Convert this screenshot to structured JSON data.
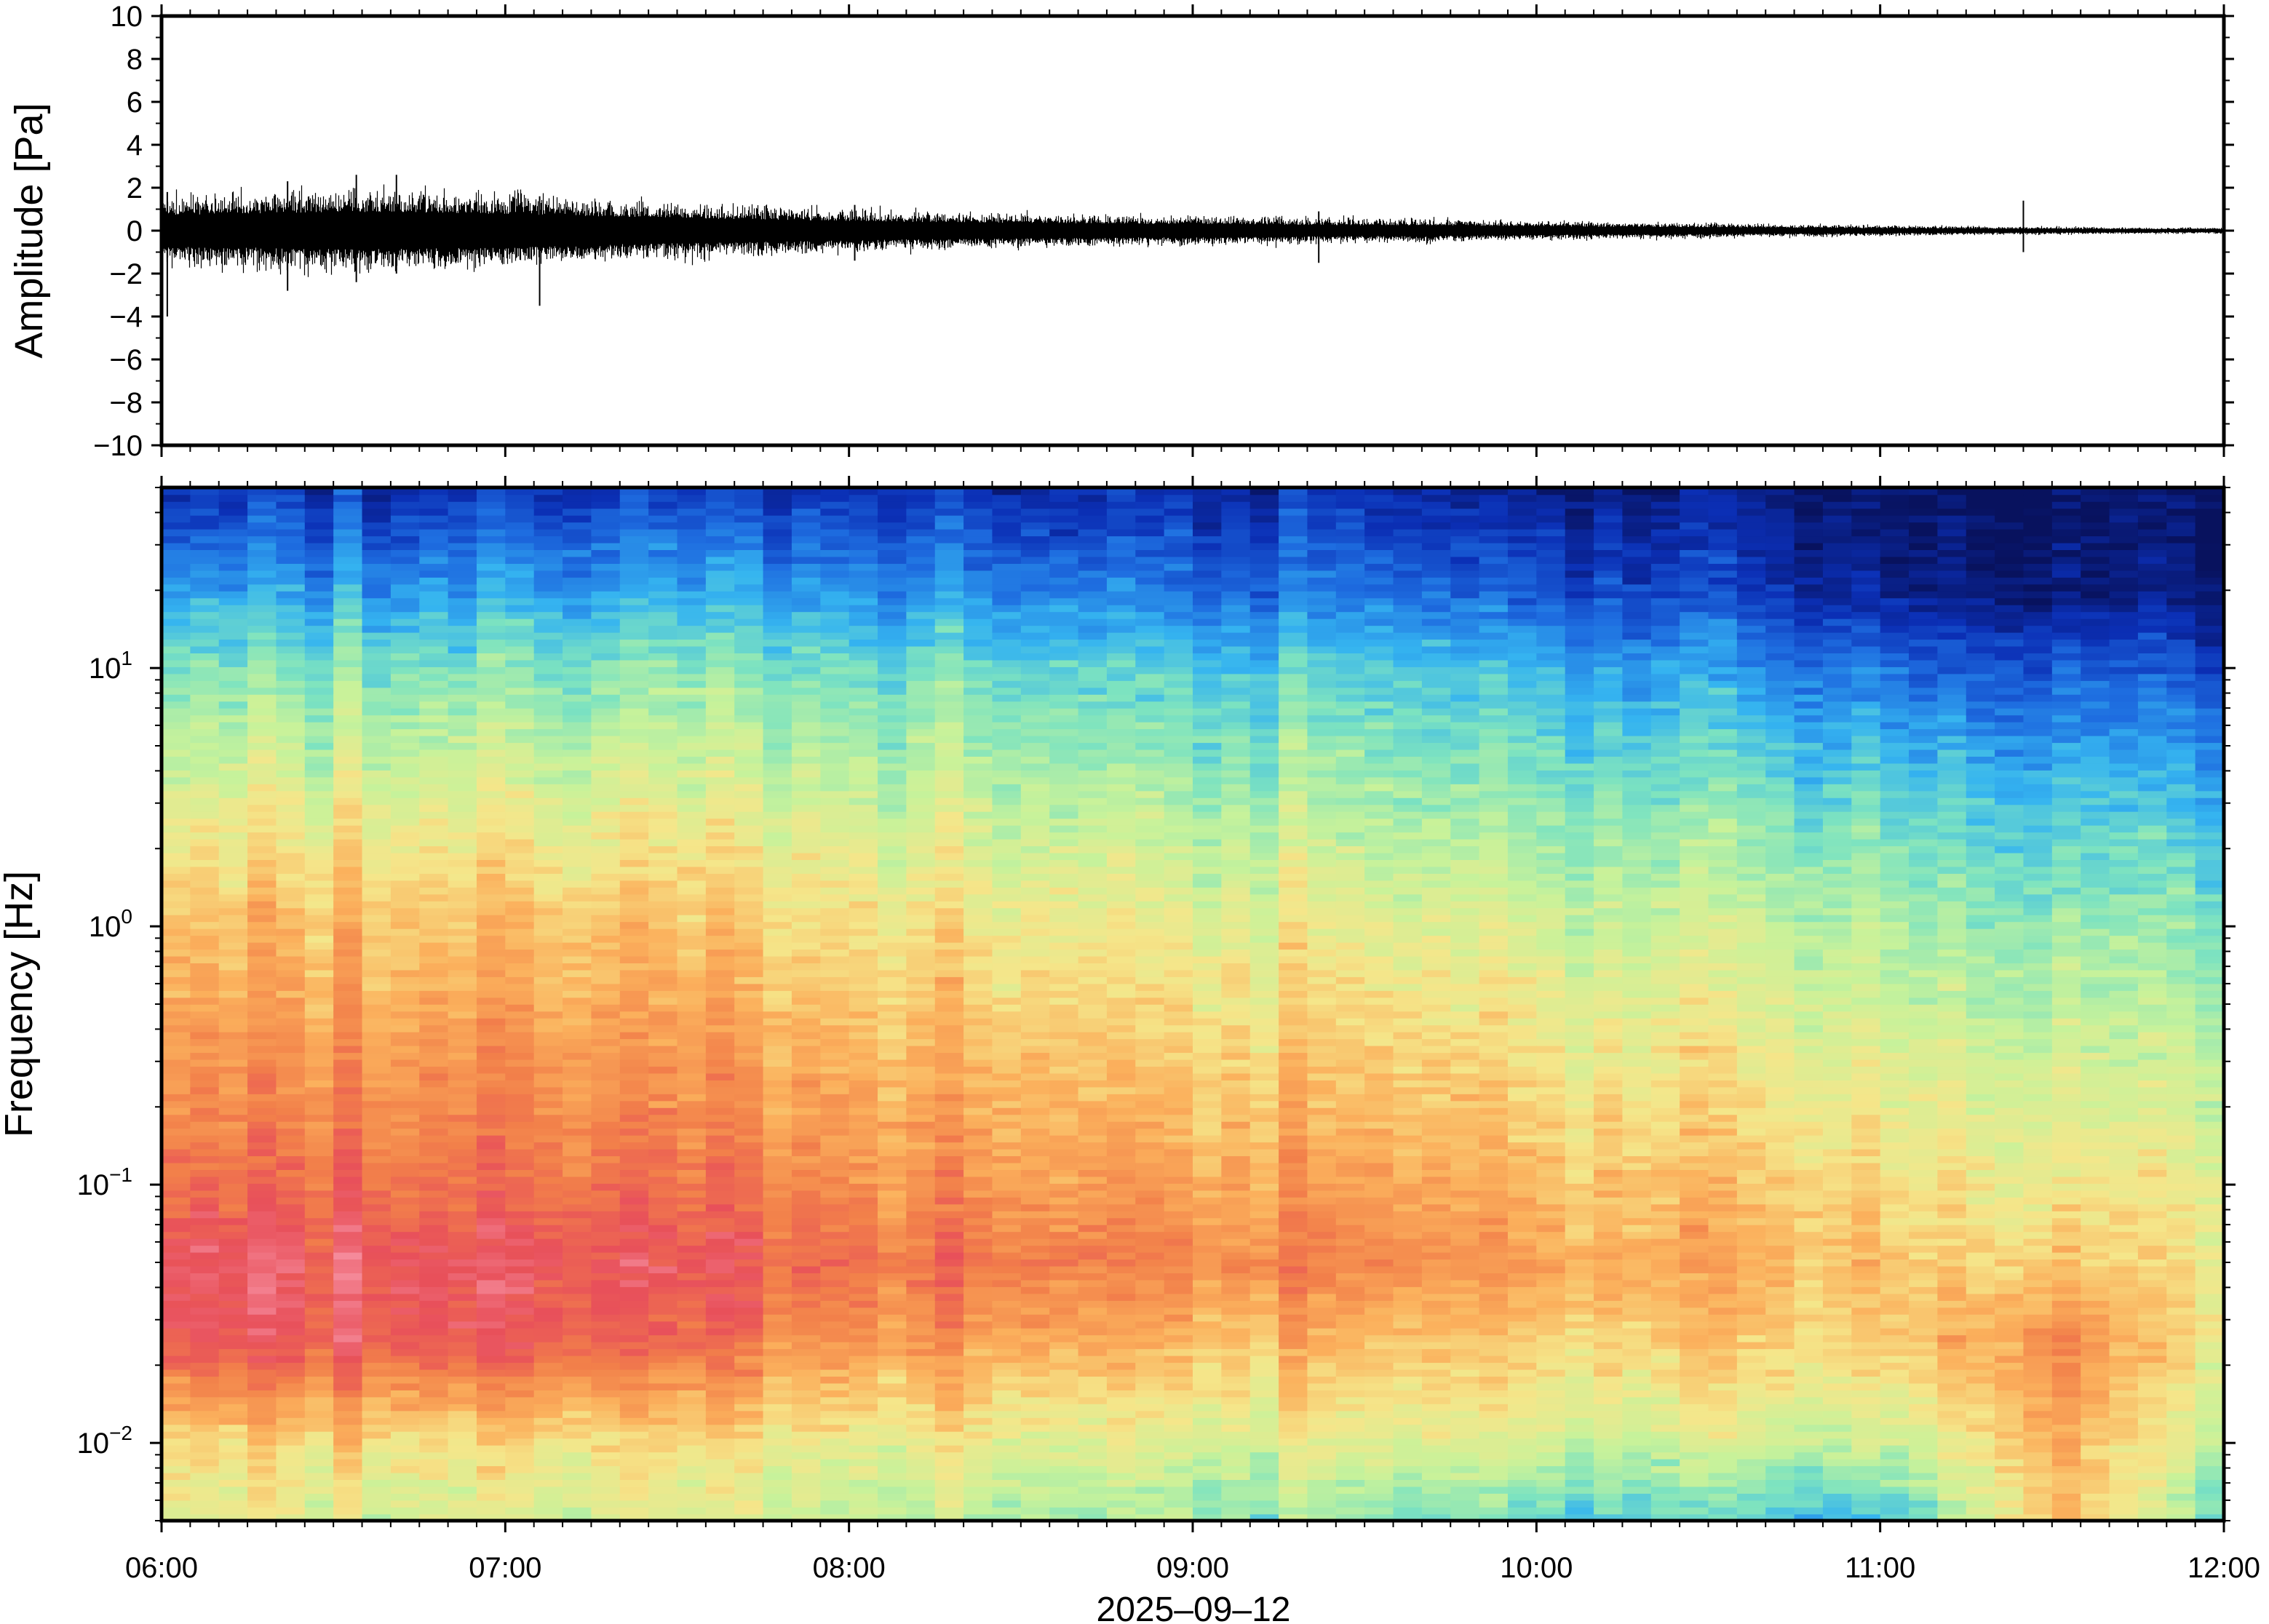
{
  "chart_data": [
    {
      "type": "line",
      "panel": "waveform",
      "ylabel": "Amplitude [Pa]",
      "ylim": [
        -10,
        10
      ],
      "yticks": [
        -10,
        -8,
        -6,
        -4,
        -2,
        0,
        2,
        4,
        6,
        8,
        10
      ],
      "ytick_labels": [
        "−10",
        "−8",
        "−6",
        "−4",
        "−2",
        "0",
        "2",
        "4",
        "6",
        "8",
        "10"
      ],
      "xlim": [
        "06:00",
        "12:00"
      ],
      "envelope": {
        "minutes": [
          0,
          10,
          20,
          30,
          40,
          50,
          60,
          70,
          80,
          90,
          100,
          110,
          120,
          130,
          140,
          150,
          160,
          170,
          180,
          190,
          200,
          210,
          220,
          230,
          240,
          250,
          260,
          270,
          280,
          290,
          300,
          310,
          320,
          330,
          340,
          350,
          360
        ],
        "amplitude": [
          1.6,
          1.7,
          1.8,
          1.9,
          1.9,
          1.8,
          1.7,
          1.6,
          1.4,
          1.3,
          1.2,
          1.1,
          1.0,
          0.9,
          0.85,
          0.8,
          0.75,
          0.7,
          0.7,
          0.65,
          0.6,
          0.55,
          0.55,
          0.5,
          0.45,
          0.4,
          0.38,
          0.35,
          0.3,
          0.28,
          0.25,
          0.22,
          0.2,
          0.18,
          0.16,
          0.15,
          0.15
        ]
      },
      "spikes": [
        {
          "minute": 1,
          "min": -4.0,
          "max": 1.8
        },
        {
          "minute": 22,
          "min": -2.8,
          "max": 2.3
        },
        {
          "minute": 34,
          "min": -2.4,
          "max": 2.6
        },
        {
          "minute": 41,
          "min": -2.0,
          "max": 2.6
        },
        {
          "minute": 66,
          "min": -3.5,
          "max": 1.6
        },
        {
          "minute": 121,
          "min": -1.4,
          "max": 1.2
        },
        {
          "minute": 202,
          "min": -1.5,
          "max": 0.9
        },
        {
          "minute": 325,
          "min": -1.0,
          "max": 1.4
        }
      ]
    },
    {
      "type": "heatmap",
      "panel": "spectrogram",
      "ylabel": "Frequency [Hz]",
      "xlabel": "2025–09–12",
      "yscale": "log",
      "ylim": [
        0.005,
        50
      ],
      "yticks": [
        {
          "value": 0.01,
          "base": "10",
          "exponent": "−2"
        },
        {
          "value": 0.1,
          "base": "10",
          "exponent": "−1"
        },
        {
          "value": 1,
          "base": "10",
          "exponent": "0"
        },
        {
          "value": 10,
          "base": "10",
          "exponent": "1"
        }
      ],
      "xlim": [
        "06:00",
        "12:00"
      ],
      "xtick_labels": [
        "06:00",
        "07:00",
        "08:00",
        "09:00",
        "10:00",
        "11:00",
        "12:00"
      ],
      "colormap": [
        "#08125e",
        "#0b2fb5",
        "#1e6de0",
        "#35b4f0",
        "#7de3c0",
        "#c8f29a",
        "#f5e68a",
        "#fbb05c",
        "#f2804a",
        "#e8505a",
        "#f58a9a"
      ],
      "color_levels_over_time": {
        "minutes": [
          0,
          60,
          120,
          180,
          240,
          300,
          330,
          360
        ],
        "log10_freq": [
          -2.3,
          -2.0,
          -1.6,
          -1.3,
          -1.0,
          -0.5,
          0.0,
          0.5,
          1.0,
          1.3,
          1.7
        ],
        "levels": [
          [
            0.58,
            0.66,
            0.92,
            0.95,
            0.86,
            0.78,
            0.7,
            0.58,
            0.44,
            0.3,
            0.12
          ],
          [
            0.55,
            0.62,
            0.9,
            0.92,
            0.84,
            0.76,
            0.68,
            0.56,
            0.42,
            0.28,
            0.12
          ],
          [
            0.5,
            0.58,
            0.76,
            0.84,
            0.78,
            0.7,
            0.62,
            0.52,
            0.4,
            0.26,
            0.1
          ],
          [
            0.46,
            0.56,
            0.7,
            0.8,
            0.74,
            0.66,
            0.58,
            0.48,
            0.36,
            0.22,
            0.1
          ],
          [
            0.36,
            0.52,
            0.64,
            0.72,
            0.68,
            0.6,
            0.52,
            0.42,
            0.3,
            0.16,
            0.04
          ],
          [
            0.32,
            0.5,
            0.64,
            0.66,
            0.62,
            0.55,
            0.47,
            0.37,
            0.2,
            0.06,
            0.02
          ],
          [
            0.7,
            0.72,
            0.8,
            0.66,
            0.6,
            0.53,
            0.45,
            0.35,
            0.18,
            0.04,
            0.01
          ],
          [
            0.4,
            0.5,
            0.58,
            0.6,
            0.58,
            0.5,
            0.42,
            0.32,
            0.16,
            0.04,
            0.01
          ]
        ]
      }
    }
  ]
}
